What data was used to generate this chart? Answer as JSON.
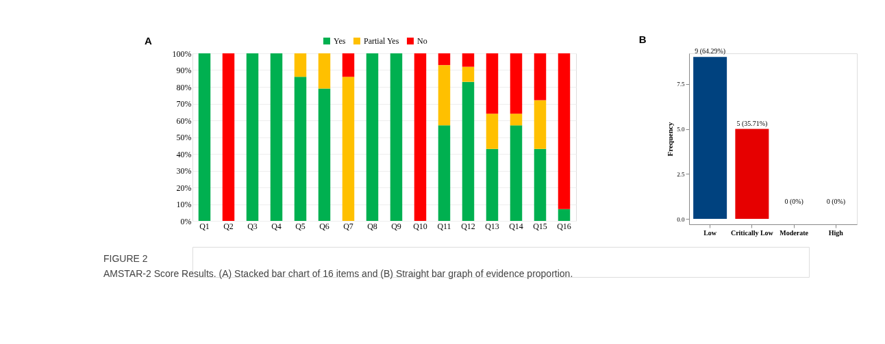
{
  "chart_data": [
    {
      "type": "bar",
      "title": "A",
      "stacked": true,
      "categories": [
        "Q1",
        "Q2",
        "Q3",
        "Q4",
        "Q5",
        "Q6",
        "Q7",
        "Q8",
        "Q9",
        "Q10",
        "Q11",
        "Q12",
        "Q13",
        "Q14",
        "Q15",
        "Q16"
      ],
      "series": [
        {
          "name": "Yes",
          "color": "#00b050",
          "values": [
            100,
            0,
            100,
            100,
            86,
            79,
            0,
            100,
            100,
            0,
            57,
            83,
            43,
            57,
            43,
            7
          ]
        },
        {
          "name": "Partial Yes",
          "color": "#ffc000",
          "values": [
            0,
            0,
            0,
            0,
            14,
            21,
            86,
            0,
            0,
            0,
            36,
            9,
            21,
            7,
            29,
            0
          ]
        },
        {
          "name": "No",
          "color": "#ff0000",
          "values": [
            0,
            100,
            0,
            0,
            0,
            0,
            14,
            0,
            0,
            100,
            7,
            8,
            36,
            36,
            28,
            93
          ]
        }
      ],
      "ylim": [
        0,
        100
      ],
      "yticks": [
        {
          "value": 0,
          "label": "0%"
        },
        {
          "value": 10,
          "label": "10%"
        },
        {
          "value": 20,
          "label": "20%"
        },
        {
          "value": 30,
          "label": "30%"
        },
        {
          "value": 40,
          "label": "40%"
        },
        {
          "value": 50,
          "label": "50%"
        },
        {
          "value": 60,
          "label": "60%"
        },
        {
          "value": 70,
          "label": "70%"
        },
        {
          "value": 80,
          "label": "80%"
        },
        {
          "value": 90,
          "label": "90%"
        },
        {
          "value": 100,
          "label": "100%"
        }
      ],
      "grid": "y",
      "legend": "top",
      "annotations": [
        "FIGURE 2",
        "AMSTAR-2 Score Results. (A) Stacked bar chart of 16 items and (B) Straight bar graph of evidence proportion."
      ]
    },
    {
      "type": "bar",
      "title": "B",
      "categories": [
        "Low",
        "Critically Low",
        "Moderate",
        "High"
      ],
      "values": [
        9,
        5,
        0,
        0
      ],
      "colors": [
        "#00427f",
        "#e60000",
        "#00427f",
        "#00427f"
      ],
      "value_labels": [
        "9 (64.29%)",
        "5 (35.71%)",
        "0 (0%)",
        "0 (0%)"
      ],
      "ylabel": "Frequency",
      "ylim": [
        -0.3,
        9.2
      ],
      "yticks": [
        {
          "value": 0,
          "label": "0.0"
        },
        {
          "value": 2.5,
          "label": "2.5"
        },
        {
          "value": 5,
          "label": "5.0"
        },
        {
          "value": 7.5,
          "label": "7.5"
        }
      ],
      "grid": false,
      "legend": false
    }
  ]
}
